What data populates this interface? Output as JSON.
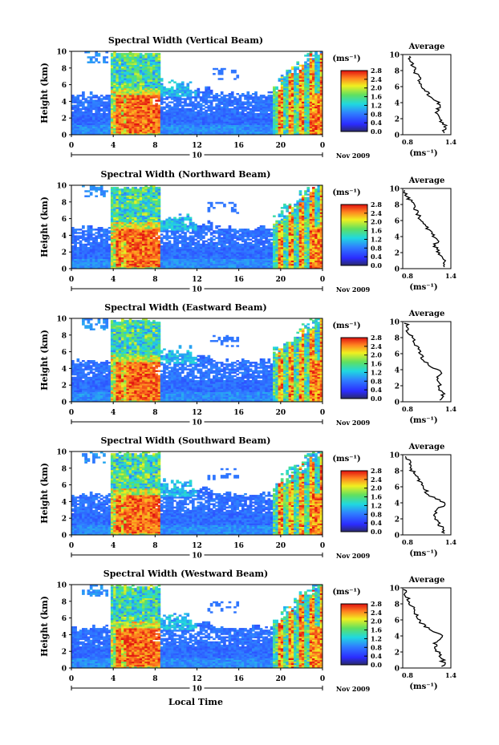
{
  "figure": {
    "xlabel": "Local Time",
    "date_label": "Nov 2009",
    "sub_axis_day": "10",
    "colorbar_unit": "(ms⁻¹)",
    "average_title": "Average",
    "average_unit": "(ms⁻¹)",
    "average_xticks": [
      "0.8",
      "1.4"
    ]
  },
  "chart_data": [
    {
      "type": "heatmap",
      "title": "Spectral Width (Vertical Beam)",
      "ylabel": "Height (km)",
      "xticks": [
        "0",
        "4",
        "8",
        "12",
        "16",
        "20",
        "0"
      ],
      "yticks": [
        "0",
        "2",
        "4",
        "6",
        "8",
        "10"
      ],
      "xlim": [
        0,
        24
      ],
      "ylim": [
        0,
        10
      ],
      "colorbar": {
        "ticks": [
          "0.0",
          "0.4",
          "0.8",
          "1.2",
          "1.6",
          "2.0",
          "2.4",
          "2.8"
        ],
        "range": [
          0,
          2.8
        ]
      },
      "average_profile": {
        "height": [
          0.2,
          1,
          2,
          3,
          3.5,
          4,
          5,
          6,
          7,
          8,
          9,
          9.8
        ],
        "value": [
          1.3,
          1.34,
          1.25,
          1.22,
          1.28,
          1.25,
          1.12,
          1.05,
          1.0,
          0.95,
          0.9,
          0.88
        ],
        "xlim": [
          0.8,
          1.4
        ]
      }
    },
    {
      "type": "heatmap",
      "title": "Spectral Width (Northward Beam)",
      "ylabel": "Height (km)",
      "xticks": [
        "0",
        "4",
        "8",
        "12",
        "16",
        "20",
        "0"
      ],
      "yticks": [
        "0",
        "2",
        "4",
        "6",
        "8",
        "10"
      ],
      "xlim": [
        0,
        24
      ],
      "ylim": [
        0,
        10
      ],
      "colorbar": {
        "ticks": [
          "0.0",
          "0.4",
          "0.8",
          "1.2",
          "1.6",
          "2.0",
          "2.4",
          "2.8"
        ],
        "range": [
          0,
          2.8
        ]
      },
      "average_profile": {
        "height": [
          0.2,
          1,
          2,
          3,
          3.5,
          4,
          5,
          6,
          7,
          8,
          9,
          9.8
        ],
        "value": [
          1.3,
          1.32,
          1.25,
          1.2,
          1.26,
          1.2,
          1.1,
          1.02,
          0.98,
          0.92,
          0.86,
          0.82
        ],
        "xlim": [
          0.8,
          1.4
        ]
      }
    },
    {
      "type": "heatmap",
      "title": "Spectral Width (Eastward Beam)",
      "ylabel": "Height (km)",
      "xticks": [
        "0",
        "4",
        "8",
        "12",
        "16",
        "20",
        "0"
      ],
      "yticks": [
        "0",
        "2",
        "4",
        "6",
        "8",
        "10"
      ],
      "xlim": [
        0,
        24
      ],
      "ylim": [
        0,
        10
      ],
      "colorbar": {
        "ticks": [
          "0.0",
          "0.4",
          "0.8",
          "1.2",
          "1.6",
          "2.0",
          "2.4",
          "2.8"
        ],
        "range": [
          0,
          2.8
        ]
      },
      "average_profile": {
        "height": [
          0.2,
          1,
          2,
          3,
          3.5,
          4,
          5,
          6,
          7,
          8,
          9,
          9.8
        ],
        "value": [
          1.28,
          1.3,
          1.25,
          1.24,
          1.3,
          1.22,
          1.08,
          1.02,
          0.97,
          0.92,
          0.86,
          0.84
        ],
        "xlim": [
          0.8,
          1.4
        ]
      }
    },
    {
      "type": "heatmap",
      "title": "Spectral Width (Southward Beam)",
      "ylabel": "Height (km)",
      "xticks": [
        "0",
        "4",
        "8",
        "12",
        "16",
        "20",
        "0"
      ],
      "yticks": [
        "0",
        "2",
        "4",
        "6",
        "8",
        "10"
      ],
      "xlim": [
        0,
        24
      ],
      "ylim": [
        0,
        10
      ],
      "colorbar": {
        "ticks": [
          "0.0",
          "0.4",
          "0.8",
          "1.2",
          "1.6",
          "2.0",
          "2.4",
          "2.8"
        ],
        "range": [
          0,
          2.8
        ]
      },
      "average_profile": {
        "height": [
          0.2,
          1,
          2,
          3,
          3.5,
          4,
          5,
          6,
          7,
          8,
          9,
          9.8
        ],
        "value": [
          1.3,
          1.28,
          1.22,
          1.2,
          1.28,
          1.32,
          1.12,
          1.05,
          0.98,
          0.92,
          0.88,
          0.85
        ],
        "xlim": [
          0.8,
          1.4
        ]
      }
    },
    {
      "type": "heatmap",
      "title": "Spectral Width (Westward Beam)",
      "ylabel": "Height (km)",
      "xticks": [
        "0",
        "4",
        "8",
        "12",
        "16",
        "20",
        "0"
      ],
      "yticks": [
        "0",
        "2",
        "4",
        "6",
        "8",
        "10"
      ],
      "xlim": [
        0,
        24
      ],
      "ylim": [
        0,
        10
      ],
      "colorbar": {
        "ticks": [
          "0.0",
          "0.4",
          "0.8",
          "1.2",
          "1.6",
          "2.0",
          "2.4",
          "2.8"
        ],
        "range": [
          0,
          2.8
        ]
      },
      "average_profile": {
        "height": [
          0.2,
          1,
          2,
          3,
          3.5,
          4,
          5,
          6,
          7,
          8,
          9,
          9.8
        ],
        "value": [
          1.3,
          1.3,
          1.24,
          1.2,
          1.25,
          1.3,
          1.1,
          1.0,
          0.95,
          0.9,
          0.85,
          0.82
        ],
        "xlim": [
          0.8,
          1.4
        ]
      }
    }
  ]
}
